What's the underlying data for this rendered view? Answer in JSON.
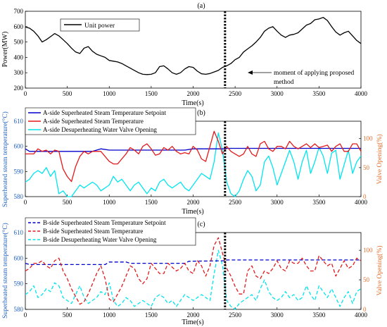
{
  "chart_data": [
    {
      "panel_label": "(a)",
      "type": "line",
      "xlabel": "Time(s)",
      "ylabel": "Power(MW)",
      "xlim": [
        0,
        4000
      ],
      "ylim": [
        200,
        700
      ],
      "xticks": [
        "0",
        "500",
        "1000",
        "1500",
        "2000",
        "2500",
        "3000",
        "3500",
        "4000"
      ],
      "yticks": [
        "200",
        "300",
        "400",
        "500",
        "600",
        "700"
      ],
      "legend": {
        "position": "top-left",
        "entries": [
          "Unit power"
        ]
      },
      "vline_x": 2380,
      "annotation": {
        "line1": "moment of applying proposed",
        "line2": "method"
      },
      "series": [
        {
          "name": "Unit power",
          "color": "#000000",
          "x": [
            0,
            50,
            100,
            150,
            200,
            250,
            300,
            350,
            400,
            450,
            500,
            550,
            600,
            650,
            700,
            750,
            800,
            850,
            900,
            950,
            1000,
            1050,
            1100,
            1150,
            1200,
            1250,
            1300,
            1350,
            1400,
            1450,
            1500,
            1550,
            1600,
            1650,
            1700,
            1750,
            1800,
            1850,
            1900,
            1950,
            2000,
            2050,
            2100,
            2150,
            2200,
            2250,
            2300,
            2350,
            2400,
            2450,
            2500,
            2550,
            2600,
            2650,
            2700,
            2750,
            2800,
            2850,
            2900,
            2950,
            3000,
            3050,
            3100,
            3150,
            3200,
            3250,
            3300,
            3350,
            3400,
            3450,
            3500,
            3550,
            3600,
            3650,
            3700,
            3750,
            3800,
            3850,
            3900,
            3950,
            4000
          ],
          "values": [
            598,
            590,
            570,
            540,
            500,
            515,
            535,
            555,
            540,
            515,
            490,
            460,
            435,
            425,
            460,
            470,
            440,
            420,
            410,
            400,
            380,
            375,
            370,
            360,
            345,
            330,
            315,
            300,
            290,
            288,
            290,
            300,
            340,
            345,
            325,
            300,
            290,
            300,
            325,
            340,
            335,
            310,
            293,
            290,
            295,
            305,
            315,
            335,
            345,
            360,
            385,
            400,
            435,
            455,
            475,
            500,
            530,
            570,
            590,
            600,
            570,
            545,
            530,
            545,
            550,
            560,
            585,
            610,
            620,
            645,
            650,
            660,
            640,
            600,
            565,
            545,
            560,
            570,
            540,
            510,
            490
          ]
        }
      ]
    },
    {
      "panel_label": "(b)",
      "type": "line",
      "xlabel": "Time(s)",
      "ylabel": "Superheated steam temperature(°C)",
      "ylabel_right": "Valve Opening(%)",
      "xlim": [
        0,
        4000
      ],
      "ylim": [
        580,
        610
      ],
      "ylim_right": [
        0,
        130
      ],
      "xticks": [
        "0",
        "500",
        "1000",
        "1500",
        "2000",
        "2500",
        "3000",
        "3500",
        "4000"
      ],
      "yticks": [
        "580",
        "590",
        "600",
        "610"
      ],
      "yticks_right": [
        "0",
        "50",
        "100"
      ],
      "legend": {
        "position": "top-left"
      },
      "vline_x": 2380,
      "series": [
        {
          "name": "A-side Superheated Steam Temperature Setpoint",
          "axis": "left",
          "color": "#0000cc",
          "dash": "solid",
          "x": [
            0,
            50,
            100,
            800,
            900,
            1000,
            1900,
            2000,
            2390,
            2400,
            3100,
            4000
          ],
          "values": [
            599,
            598,
            598,
            598,
            599,
            598.5,
            598.5,
            599,
            599,
            599.2,
            599.2,
            599.2
          ]
        },
        {
          "name": "A-side Superheated Steam Temperature",
          "axis": "left",
          "color": "#e31a1c",
          "dash": "solid",
          "x": [
            0,
            50,
            100,
            150,
            200,
            250,
            300,
            350,
            400,
            450,
            500,
            550,
            600,
            650,
            700,
            750,
            800,
            850,
            900,
            950,
            1000,
            1050,
            1100,
            1150,
            1200,
            1250,
            1300,
            1350,
            1400,
            1450,
            1500,
            1550,
            1600,
            1650,
            1700,
            1750,
            1800,
            1850,
            1900,
            1950,
            2000,
            2050,
            2100,
            2150,
            2200,
            2250,
            2300,
            2350,
            2400,
            2450,
            2500,
            2550,
            2600,
            2650,
            2700,
            2750,
            2800,
            2850,
            2900,
            2950,
            3000,
            3050,
            3100,
            3150,
            3200,
            3250,
            3300,
            3350,
            3400,
            3450,
            3500,
            3550,
            3600,
            3650,
            3700,
            3750,
            3800,
            3850,
            3900,
            3950,
            4000
          ],
          "values": [
            597,
            597,
            597,
            599,
            598,
            598.5,
            597,
            598.5,
            598,
            591,
            588,
            586,
            592,
            596,
            598,
            597,
            598,
            598,
            598,
            596,
            594,
            593,
            593,
            595,
            597,
            599.5,
            598.5,
            597,
            600,
            601,
            599,
            596.5,
            597,
            599.5,
            598.5,
            600,
            598,
            597,
            597.5,
            597,
            600,
            598.5,
            595,
            594,
            600,
            606,
            602,
            597,
            600,
            598,
            597,
            596,
            597,
            600,
            597,
            596,
            601,
            602,
            599,
            598,
            600,
            600,
            599,
            602,
            600,
            599,
            600,
            601,
            599.5,
            601,
            599.5,
            600,
            600.5,
            598,
            600,
            601,
            598,
            598,
            601,
            601,
            598
          ]
        },
        {
          "name": "A-side Desuperheating Water Valve Opening",
          "axis": "right",
          "color": "#00e5ee",
          "dash": "solid",
          "x": [
            0,
            50,
            100,
            150,
            200,
            250,
            300,
            350,
            400,
            450,
            500,
            550,
            600,
            650,
            700,
            750,
            800,
            850,
            900,
            950,
            1000,
            1050,
            1100,
            1150,
            1200,
            1250,
            1300,
            1350,
            1400,
            1450,
            1500,
            1550,
            1600,
            1650,
            1700,
            1750,
            1800,
            1850,
            1900,
            1950,
            2000,
            2050,
            2100,
            2150,
            2200,
            2250,
            2300,
            2350,
            2400,
            2450,
            2500,
            2550,
            2600,
            2650,
            2700,
            2750,
            2800,
            2850,
            2900,
            2950,
            3000,
            3050,
            3100,
            3150,
            3200,
            3250,
            3300,
            3350,
            3400,
            3450,
            3500,
            3550,
            3600,
            3650,
            3700,
            3750,
            3800,
            3850,
            3900,
            3950,
            4000
          ],
          "values": [
            25,
            30,
            40,
            45,
            40,
            50,
            35,
            45,
            5,
            10,
            0,
            0,
            10,
            20,
            15,
            20,
            25,
            20,
            10,
            15,
            20,
            35,
            25,
            30,
            20,
            10,
            20,
            25,
            15,
            5,
            15,
            10,
            25,
            30,
            20,
            15,
            20,
            25,
            15,
            10,
            20,
            30,
            40,
            35,
            30,
            60,
            110,
            80,
            25,
            5,
            0,
            10,
            30,
            45,
            35,
            10,
            20,
            60,
            70,
            50,
            20,
            40,
            60,
            80,
            60,
            30,
            60,
            80,
            40,
            60,
            85,
            70,
            40,
            75,
            80,
            30,
            55,
            80,
            40,
            60,
            70
          ]
        }
      ]
    },
    {
      "panel_label": "(c)",
      "type": "line",
      "xlabel": "Time(s)",
      "ylabel": "Superheated steam temperature(°C)",
      "ylabel_right": "Valve Opening(%)",
      "xlim": [
        0,
        4000
      ],
      "ylim": [
        580,
        610
      ],
      "ylim_right": [
        0,
        130
      ],
      "xticks": [
        "0",
        "500",
        "1000",
        "1500",
        "2000",
        "2500",
        "3000",
        "3500",
        "4000"
      ],
      "yticks": [
        "580",
        "590",
        "600",
        "610"
      ],
      "yticks_right": [
        "0",
        "50",
        "100"
      ],
      "legend": {
        "position": "top-left"
      },
      "vline_x": 2380,
      "series": [
        {
          "name": "B-side Superheated Steam Temperature Setpoint",
          "axis": "left",
          "color": "#0000cc",
          "dash": "dashed",
          "x": [
            0,
            50,
            100,
            950,
            1000,
            1200,
            1250,
            1900,
            1950,
            2390,
            2400,
            3100,
            4000
          ],
          "values": [
            598,
            597.5,
            597.5,
            597.5,
            598.5,
            598.5,
            598,
            598,
            598.8,
            599,
            599.3,
            599.3,
            599.3
          ]
        },
        {
          "name": "B-side Superheated Steam Temperature",
          "axis": "left",
          "color": "#e31a1c",
          "dash": "dashed",
          "x": [
            0,
            50,
            100,
            150,
            200,
            250,
            300,
            350,
            400,
            450,
            500,
            550,
            600,
            650,
            700,
            750,
            800,
            850,
            900,
            950,
            1000,
            1050,
            1100,
            1150,
            1200,
            1250,
            1300,
            1350,
            1400,
            1450,
            1500,
            1550,
            1600,
            1650,
            1700,
            1750,
            1800,
            1850,
            1900,
            1950,
            2000,
            2050,
            2100,
            2150,
            2200,
            2250,
            2300,
            2350,
            2400,
            2450,
            2500,
            2550,
            2600,
            2650,
            2700,
            2750,
            2800,
            2850,
            2900,
            2950,
            3000,
            3050,
            3100,
            3150,
            3200,
            3250,
            3300,
            3350,
            3400,
            3450,
            3500,
            3550,
            3600,
            3650,
            3700,
            3750,
            3800,
            3850,
            3900,
            3950,
            4000
          ],
          "values": [
            595,
            596,
            598,
            598,
            599,
            597,
            596,
            599,
            600,
            595,
            592,
            588,
            585,
            582,
            583,
            586,
            590,
            594,
            597,
            592,
            584,
            583,
            586,
            589,
            593,
            597,
            596,
            592,
            590,
            592,
            598,
            596,
            594,
            594,
            598,
            596.5,
            595,
            596,
            598,
            595,
            594,
            599,
            597,
            593,
            597,
            605,
            608,
            602,
            596,
            593,
            589,
            586,
            586,
            595,
            597,
            593,
            592,
            595,
            594,
            596,
            599,
            596,
            595,
            599,
            598,
            598,
            600,
            597,
            595,
            595,
            601,
            599,
            597,
            598,
            593,
            596,
            599,
            596,
            597,
            600,
            599
          ]
        },
        {
          "name": "B-side Desuperheating Water Valve Opening",
          "axis": "right",
          "color": "#00e5ee",
          "dash": "dashed",
          "x": [
            0,
            50,
            100,
            150,
            200,
            250,
            300,
            350,
            400,
            450,
            500,
            550,
            600,
            650,
            700,
            750,
            800,
            850,
            900,
            950,
            1000,
            1050,
            1100,
            1150,
            1200,
            1250,
            1300,
            1350,
            1400,
            1450,
            1500,
            1550,
            1600,
            1650,
            1700,
            1750,
            1800,
            1850,
            1900,
            1950,
            2000,
            2050,
            2100,
            2150,
            2200,
            2250,
            2300,
            2350,
            2400,
            2450,
            2500,
            2550,
            2600,
            2650,
            2700,
            2750,
            2800,
            2850,
            2900,
            2950,
            3000,
            3050,
            3100,
            3150,
            3200,
            3250,
            3300,
            3350,
            3400,
            3450,
            3500,
            3550,
            3600,
            3650,
            3700,
            3750,
            3800,
            3850,
            3900,
            3950,
            4000
          ],
          "values": [
            25,
            30,
            40,
            20,
            25,
            35,
            30,
            45,
            40,
            20,
            15,
            10,
            25,
            40,
            20,
            10,
            15,
            20,
            30,
            25,
            45,
            15,
            5,
            10,
            20,
            15,
            5,
            10,
            15,
            10,
            5,
            20,
            25,
            20,
            10,
            15,
            5,
            15,
            25,
            20,
            15,
            20,
            25,
            20,
            15,
            60,
            100,
            75,
            15,
            5,
            0,
            10,
            15,
            20,
            25,
            15,
            35,
            50,
            30,
            20,
            15,
            20,
            30,
            20,
            25,
            15,
            20,
            40,
            25,
            15,
            40,
            30,
            20,
            35,
            20,
            5,
            20,
            30,
            10,
            30,
            35
          ]
        }
      ]
    }
  ]
}
